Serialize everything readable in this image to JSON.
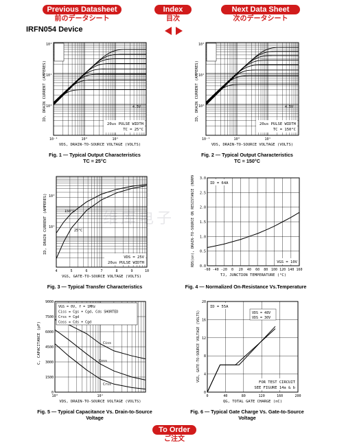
{
  "nav": {
    "prev": {
      "label": "Previous Datasheet",
      "jp": "前のデータシート"
    },
    "index": {
      "label": "Index",
      "jp": "目次"
    },
    "next": {
      "label": "Next Data Sheet",
      "jp": "次のデータシート"
    },
    "order": {
      "label": "To Order",
      "jp": "ご注文"
    }
  },
  "device_title": "IRFN054 Device",
  "watermark": "维库电子",
  "figures": {
    "fig1": {
      "caption_line1": "Fig. 1 — Typical Output Characteristics",
      "caption_line2": "TC = 25°C",
      "ylabel": "ID, DRAIN CURRENT (AMPERES)",
      "xlabel": "VDS, DRAIN-TO-SOURCE VOLTAGE (VOLTS)",
      "note1": "20us PULSE WIDTH",
      "note2": "TC = 25°C",
      "curve_label": "4.5V",
      "yticks": [
        "10²",
        "10¹",
        "10⁰"
      ],
      "xticks": [
        "10⁻¹",
        "10⁰",
        "10¹"
      ]
    },
    "fig2": {
      "caption_line1": "Fig. 2 — Typical Output Characteristics",
      "caption_line2": "TC = 150°C",
      "ylabel": "ID, DRAIN CURRENT (AMPERES)",
      "xlabel": "VDS, DRAIN-TO-SOURCE VOLTAGE (VOLTS)",
      "note1": "20us PULSE WIDTH",
      "note2": "TC = 150°C",
      "curve_label": "4.5V",
      "yticks": [
        "10²",
        "10¹",
        "10⁰"
      ],
      "xticks": [
        "10⁻¹",
        "10⁰",
        "10¹"
      ]
    },
    "fig3": {
      "caption_line1": "Fig. 3 — Typical Transfer Characteristics",
      "ylabel": "ID, DRAIN CURRENT (AMPERES)",
      "xlabel": "VGS, GATE-TO-SOURCE VOLTAGE (VOLTS)",
      "note1": "VDS = 25V",
      "note2": "20us PULSE WIDTH",
      "label_hot": "150°C",
      "label_cold": "25°C",
      "xticks": [
        "4",
        "5",
        "6",
        "7",
        "8",
        "9",
        "10"
      ],
      "yticks": [
        "10²",
        "10¹"
      ]
    },
    "fig4": {
      "caption_line1": "Fig. 4 — Normalized On-Resistance Vs.Temperature",
      "ylabel": "RDS(on), DRAIN-TO-SOURCE ON RESISTANCE (NORMALIZED)",
      "xlabel": "TJ, JUNCTION TEMPERATURE (°C)",
      "note_top": "ID = 64A",
      "note_bottom": "VGS = 10V",
      "xticks": [
        "-60",
        "-40",
        "-20",
        "0",
        "20",
        "40",
        "60",
        "80",
        "100",
        "120",
        "140",
        "160"
      ],
      "yticks": [
        "3.0",
        "2.5",
        "2.0",
        "1.5",
        "1.0",
        "0.5",
        "0.0"
      ]
    },
    "fig5": {
      "caption_line1": "Fig. 5 — Typical Capacitance Vs. Drain-to-Source",
      "caption_line2": "Voltage",
      "ylabel": "C, CAPACITANCE (pF)",
      "xlabel": "VDS, DRAIN-TO-SOURCE VOLTAGE (VOLTS)",
      "legend": [
        "VGS = 0V,  f = 1MHz",
        "Ciss = Cgs + Cgd, Cds SHORTED",
        "Crss = Cgd",
        "Coss = Cds + Cgd"
      ],
      "curve_labels": [
        "Ciss",
        "Coss",
        "Crss"
      ],
      "yticks": [
        "9000",
        "7500",
        "6000",
        "4500",
        "3000",
        "1500",
        "0"
      ],
      "xticks": [
        "10⁰",
        "10¹"
      ]
    },
    "fig6": {
      "caption_line1": "Fig. 6 — Typical Gate Charge Vs. Gate-to-Source",
      "caption_line2": "Voltage",
      "ylabel": "VGS, GATE-TO-SOURCE VOLTAGE (VOLTS)",
      "xlabel": "QG, TOTAL GATE CHARGE (nC)",
      "note_top": "ID = 55A",
      "legend": [
        "VDS = 48V",
        "VDS = 30V"
      ],
      "note_bottom1": "FOR TEST CIRCUIT",
      "note_bottom2": "SEE FIGURE 14a & b",
      "xticks": [
        "0",
        "40",
        "80",
        "120",
        "160",
        "200"
      ],
      "yticks": [
        "20",
        "16",
        "12",
        "8",
        "4",
        "0"
      ]
    }
  },
  "chart_data": [
    {
      "type": "line",
      "id": "fig1",
      "xlabel": "VDS, DRAIN-TO-SOURCE VOLTAGE (VOLTS)",
      "ylabel": "ID, DRAIN CURRENT (AMPERES)",
      "x_scale": "log",
      "y_scale": "log",
      "xlim": [
        0.1,
        100
      ],
      "ylim": [
        1,
        1000
      ],
      "series_saturation": [
        600,
        420,
        300,
        210,
        140,
        95,
        62,
        30
      ],
      "lowest_curve": "4.5V"
    },
    {
      "type": "line",
      "id": "fig2",
      "xlabel": "VDS, DRAIN-TO-SOURCE VOLTAGE (VOLTS)",
      "ylabel": "ID, DRAIN CURRENT (AMPERES)",
      "x_scale": "log",
      "y_scale": "log",
      "xlim": [
        0.1,
        100
      ],
      "ylim": [
        1,
        1000
      ],
      "series_saturation": [
        700,
        520,
        380,
        270,
        190,
        130,
        85,
        45
      ],
      "lowest_curve": "4.5V"
    },
    {
      "type": "line",
      "id": "fig3",
      "xlabel": "VGS, GATE-TO-SOURCE VOLTAGE (VOLTS)",
      "ylabel": "ID, DRAIN CURRENT (AMPERES)",
      "xlim": [
        4,
        10
      ],
      "y_scale": "log",
      "series": [
        {
          "name": "150°C",
          "x": [
            4,
            4.5,
            5,
            6,
            7,
            8,
            9,
            10
          ],
          "y": [
            8,
            20,
            40,
            100,
            190,
            280,
            360,
            420
          ]
        },
        {
          "name": "25°C",
          "x": [
            4,
            4.5,
            5,
            6,
            7,
            8,
            9,
            10
          ],
          "y": [
            1,
            4,
            12,
            50,
            120,
            210,
            300,
            380
          ]
        }
      ]
    },
    {
      "type": "line",
      "id": "fig4",
      "xlabel": "TJ, JUNCTION TEMPERATURE (°C)",
      "ylabel": "RDS(on), DRAIN-TO-SOURCE ON RESISTANCE (NORMALIZED)",
      "xlim": [
        -60,
        160
      ],
      "ylim": [
        0,
        3.0
      ],
      "x": [
        -60,
        -40,
        -20,
        0,
        20,
        40,
        60,
        80,
        100,
        120,
        140,
        160
      ],
      "y": [
        0.62,
        0.68,
        0.74,
        0.82,
        0.9,
        1.0,
        1.1,
        1.22,
        1.35,
        1.5,
        1.65,
        1.82
      ]
    },
    {
      "type": "line",
      "id": "fig5",
      "xlabel": "VDS, DRAIN-TO-SOURCE VOLTAGE (VOLTS)",
      "ylabel": "C, CAPACITANCE (pF)",
      "x_scale": "log",
      "xlim": [
        1,
        100
      ],
      "ylim": [
        0,
        9000
      ],
      "series": [
        {
          "name": "Ciss",
          "x": [
            1,
            2,
            5,
            10,
            20,
            50,
            100
          ],
          "y": [
            7200,
            6700,
            5800,
            4800,
            4100,
            3600,
            3300
          ]
        },
        {
          "name": "Coss",
          "x": [
            1,
            2,
            5,
            10,
            20,
            50,
            100
          ],
          "y": [
            6200,
            5200,
            3800,
            2800,
            2100,
            1500,
            1200
          ]
        },
        {
          "name": "Crss",
          "x": [
            1,
            2,
            5,
            10,
            20,
            50,
            100
          ],
          "y": [
            4800,
            3600,
            2200,
            1300,
            800,
            450,
            300
          ]
        }
      ]
    },
    {
      "type": "line",
      "id": "fig6",
      "xlabel": "QG, TOTAL GATE CHARGE (nC)",
      "ylabel": "VGS, GATE-TO-SOURCE VOLTAGE (VOLTS)",
      "xlim": [
        0,
        200
      ],
      "ylim": [
        0,
        20
      ],
      "series": [
        {
          "name": "VDS = 48V",
          "x": [
            0,
            28,
            70,
            150
          ],
          "y": [
            0,
            6,
            6,
            14.5
          ]
        },
        {
          "name": "VDS = 30V",
          "x": [
            0,
            28,
            62,
            150
          ],
          "y": [
            0,
            6,
            6,
            14
          ]
        }
      ]
    }
  ]
}
